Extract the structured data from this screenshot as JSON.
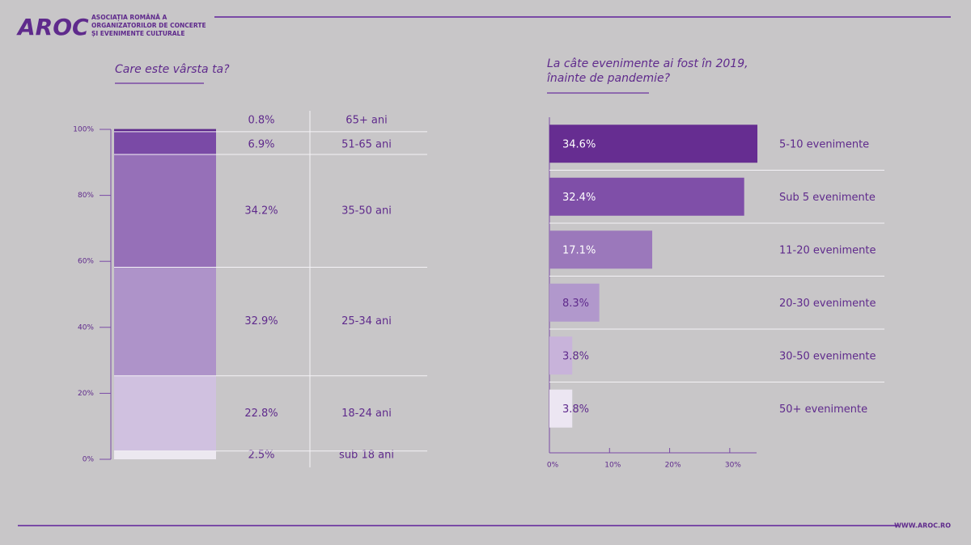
{
  "header": {
    "logo": "AROC",
    "organization": [
      "ASOCIAȚIA ROMÂNĂ A",
      "ORGANIZATORILOR DE CONCERTE",
      "ȘI EVENIMENTE CULTURALE"
    ]
  },
  "footer": {
    "url": "WWW.AROC.RO"
  },
  "chart_data": [
    {
      "type": "stacked_bar",
      "title": [
        "Care este vârsta ta?"
      ],
      "ylim": [
        0,
        100
      ],
      "yticks": [
        {
          "value": 0,
          "label": "0%"
        },
        {
          "value": 20,
          "label": "20%"
        },
        {
          "value": 40,
          "label": "40%"
        },
        {
          "value": 60,
          "label": "60%"
        },
        {
          "value": 80,
          "label": "80%"
        },
        {
          "value": 100,
          "label": "100%"
        }
      ],
      "series": [
        {
          "name": "sub 18 ani",
          "color": "#ece8f0",
          "values": [
            2.5
          ],
          "value_labels": [
            "2.5%"
          ]
        },
        {
          "name": "18-24 ani",
          "color": "#d0c1e0",
          "values": [
            22.8
          ],
          "value_labels": [
            "22.8%"
          ]
        },
        {
          "name": "25-34 ani",
          "color": "#ae93c9",
          "values": [
            32.9
          ],
          "value_labels": [
            "32.9%"
          ]
        },
        {
          "name": "35-50 ani",
          "color": "#9670b8",
          "values": [
            34.2
          ],
          "value_labels": [
            "34.2%"
          ]
        },
        {
          "name": "51-65 ani",
          "color": "#7a4aa6",
          "values": [
            6.9
          ],
          "value_labels": [
            "6.9%"
          ]
        },
        {
          "name": "65+ ani",
          "color": "#5f2a8c",
          "values": [
            0.8
          ],
          "value_labels": [
            "0.8%"
          ]
        }
      ]
    },
    {
      "type": "hbar",
      "title": [
        "La câte evenimente ai fost în 2019,",
        "înainte de pandemie?"
      ],
      "categories": [
        "5-10 evenimente",
        "Sub 5 evenimente",
        "11-20 evenimente",
        "20-30 evenimente",
        "30-50 evenimente",
        "50+ evenimente"
      ],
      "values": [
        34.6,
        32.4,
        17.1,
        8.3,
        3.8,
        3.8
      ],
      "value_labels": [
        "34.6%",
        "32.4%",
        "17.1%",
        "8.3%",
        "3.8%",
        "3.8%"
      ],
      "colors": [
        "#662d91",
        "#7f4fa8",
        "#9b78bb",
        "#b198cc",
        "#c8b3da",
        "#ece6f2"
      ],
      "xlim": [
        0,
        35
      ],
      "xticks": [
        {
          "value": 0,
          "label": "0%"
        },
        {
          "value": 10,
          "label": "10%"
        },
        {
          "value": 20,
          "label": "20%"
        },
        {
          "value": 30,
          "label": "30%"
        }
      ]
    }
  ]
}
